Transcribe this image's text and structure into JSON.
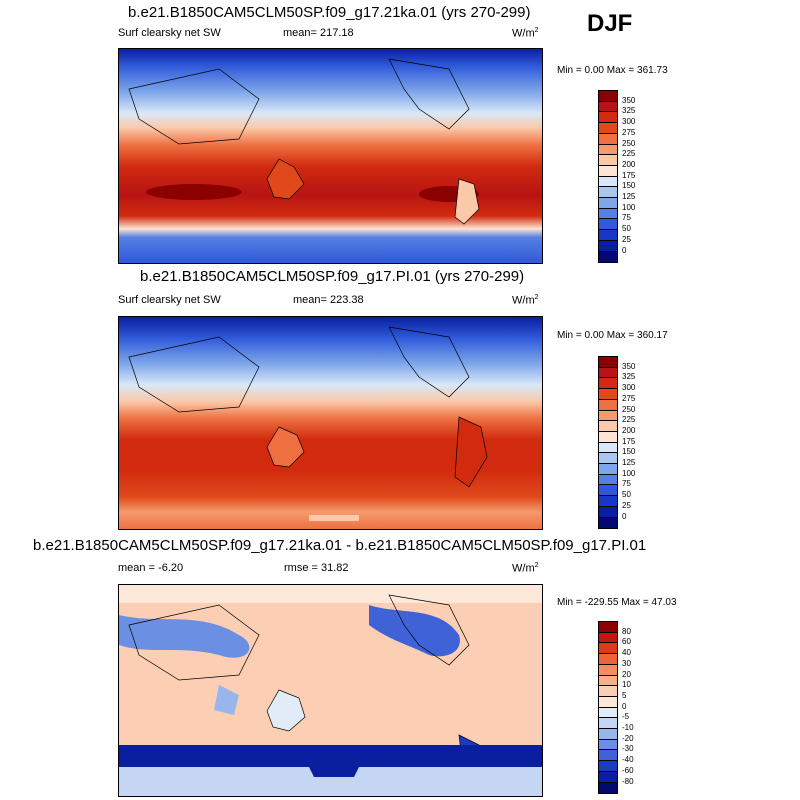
{
  "season": "DJF",
  "panels": [
    {
      "title": "b.e21.B1850CAM5CLM50SP.f09_g17.21ka.01 (yrs 270-299)",
      "left_label": "Surf clearsky net SW",
      "center_label": "mean= 217.18",
      "units": "W/m",
      "units_sup": "2",
      "minmax": "Min =   0.00 Max = 361.73"
    },
    {
      "title": "b.e21.B1850CAM5CLM50SP.f09_g17.PI.01 (yrs 270-299)",
      "left_label": "Surf clearsky net SW",
      "center_label": "mean= 223.38",
      "units": "W/m",
      "units_sup": "2",
      "minmax": "Min =   0.00 Max = 360.17"
    },
    {
      "title": "b.e21.B1850CAM5CLM50SP.f09_g17.21ka.01 - b.e21.B1850CAM5CLM50SP.f09_g17.PI.01",
      "left_label": "mean =  -6.20",
      "center_label": "rmse =  31.82",
      "units": "W/m",
      "units_sup": "2",
      "minmax": "Min = -229.55 Max =  47.03"
    }
  ],
  "chart_data": [
    {
      "type": "heatmap",
      "title": "b.e21.B1850CAM5CLM50SP.f09_g17.21ka.01 (yrs 270-299)",
      "variable": "Surf clearsky net SW",
      "mean": 217.18,
      "min": 0.0,
      "max": 361.73,
      "units": "W/m2",
      "colorbar_levels": [
        "350",
        "325",
        "300",
        "275",
        "250",
        "225",
        "200",
        "175",
        "150",
        "125",
        "100",
        "75",
        "50",
        "25",
        "0"
      ],
      "colors": [
        "#8b0000",
        "#b81414",
        "#d12a0f",
        "#e04a1a",
        "#ee7040",
        "#f59a6e",
        "#fbc8a8",
        "#fde4d4",
        "#d9e8f8",
        "#a9c6f0",
        "#7ea6ea",
        "#5680e3",
        "#2f5ad9",
        "#1737c6",
        "#0a1fa0",
        "#020a70"
      ]
    },
    {
      "type": "heatmap",
      "title": "b.e21.B1850CAM5CLM50SP.f09_g17.PI.01 (yrs 270-299)",
      "variable": "Surf clearsky net SW",
      "mean": 223.38,
      "min": 0.0,
      "max": 360.17,
      "units": "W/m2",
      "colorbar_levels": [
        "350",
        "325",
        "300",
        "275",
        "250",
        "225",
        "200",
        "175",
        "150",
        "125",
        "100",
        "75",
        "50",
        "25",
        "0"
      ],
      "colors": [
        "#8b0000",
        "#b81414",
        "#d12a0f",
        "#e04a1a",
        "#ee7040",
        "#f59a6e",
        "#fbc8a8",
        "#fde4d4",
        "#d9e8f8",
        "#a9c6f0",
        "#7ea6ea",
        "#5680e3",
        "#2f5ad9",
        "#1737c6",
        "#0a1fa0",
        "#020a70"
      ]
    },
    {
      "type": "heatmap",
      "title": "b.e21.B1850CAM5CLM50SP.f09_g17.21ka.01 - b.e21.B1850CAM5CLM50SP.f09_g17.PI.01",
      "mean": -6.2,
      "rmse": 31.82,
      "min": -229.55,
      "max": 47.03,
      "units": "W/m2",
      "colorbar_levels": [
        "80",
        "60",
        "40",
        "30",
        "20",
        "10",
        "5",
        "0",
        "-5",
        "-10",
        "-20",
        "-30",
        "-40",
        "-60",
        "-80"
      ],
      "colors": [
        "#8b0000",
        "#c0180c",
        "#de3a16",
        "#ee6436",
        "#f58d60",
        "#f9b08a",
        "#fccfb4",
        "#fde8da",
        "#e2ecf8",
        "#c4d6f3",
        "#97b6ec",
        "#6b8fe3",
        "#3f63d6",
        "#1b3cc0",
        "#0a1f9e",
        "#020a70"
      ]
    }
  ]
}
